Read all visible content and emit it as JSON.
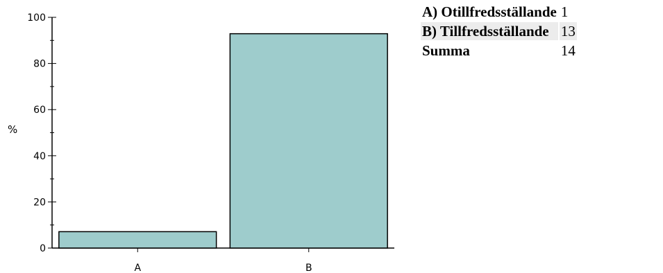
{
  "chart_data": {
    "type": "bar",
    "categories": [
      "A",
      "B"
    ],
    "values": [
      7.1,
      92.9
    ],
    "ylabel": "%",
    "xlabel": "",
    "ylim": [
      0,
      100
    ],
    "yticks": [
      0,
      20,
      40,
      60,
      80,
      100
    ],
    "bar_color": "#9ecccc",
    "grid": false
  },
  "summary": {
    "rows": [
      {
        "label": "A) Otillfredsställande",
        "count": "1"
      },
      {
        "label": "B) Tillfredsställande",
        "count": "13"
      },
      {
        "label": "Summa",
        "count": "14"
      }
    ]
  }
}
